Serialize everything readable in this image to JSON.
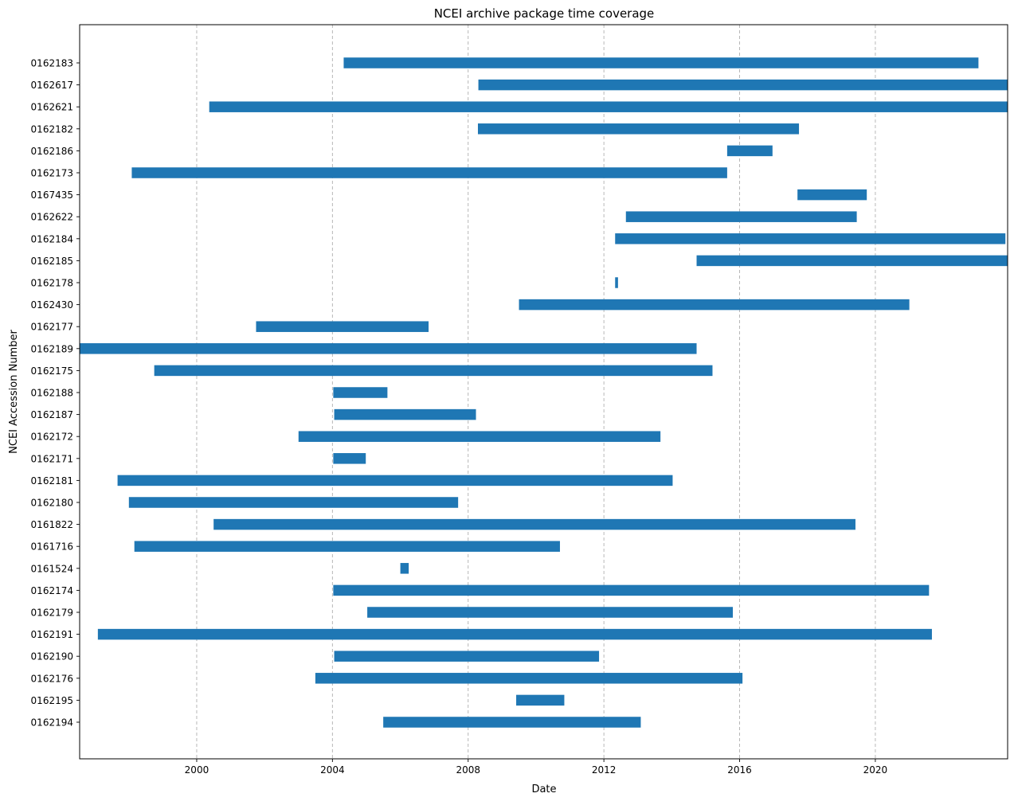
{
  "chart_data": {
    "type": "bar",
    "orientation": "horizontal",
    "title": "NCEI archive package time coverage",
    "xlabel": "Date",
    "ylabel": "NCEI Accession Number",
    "x_scale": "date",
    "xlim": [
      "1996-07-20",
      "2023-11-25"
    ],
    "x_ticks": [
      "2000",
      "2004",
      "2008",
      "2012",
      "2016",
      "2020"
    ],
    "grid": {
      "x": true,
      "y": false,
      "style": "dashed"
    },
    "bar_color": "#1f77b4",
    "categories": [
      "0162183",
      "0162617",
      "0162621",
      "0162182",
      "0162186",
      "0162173",
      "0167435",
      "0162622",
      "0162184",
      "0162185",
      "0162178",
      "0162430",
      "0162177",
      "0162189",
      "0162175",
      "0162188",
      "0162187",
      "0162172",
      "0162171",
      "0162181",
      "0162180",
      "0161822",
      "0161716",
      "0161524",
      "0162174",
      "0162179",
      "0162191",
      "0162190",
      "0162176",
      "0162195",
      "0162194"
    ],
    "start": [
      "2004-05-01",
      "2008-04-20",
      "2000-05-15",
      "2008-04-15",
      "2015-08-20",
      "1998-02-01",
      "2017-09-15",
      "2012-08-25",
      "2012-05-01",
      "2014-09-25",
      "2012-05-01",
      "2009-07-01",
      "2001-10-01",
      "1996-07-20",
      "1998-10-01",
      "2004-01-10",
      "2004-01-20",
      "2003-01-01",
      "2004-01-10",
      "1997-09-01",
      "1998-01-01",
      "2000-07-01",
      "1998-03-01",
      "2006-01-01",
      "2004-01-10",
      "2005-01-10",
      "1997-02-01",
      "2004-01-20",
      "2003-07-01",
      "2009-06-01",
      "2005-07-01"
    ],
    "end": [
      "2023-01-15",
      "2023-11-25",
      "2023-11-25",
      "2017-10-01",
      "2016-12-20",
      "2015-08-20",
      "2019-10-01",
      "2019-06-15",
      "2023-11-01",
      "2023-11-25",
      "2012-06-01",
      "2021-01-01",
      "2006-11-01",
      "2014-09-25",
      "2015-03-15",
      "2005-08-15",
      "2008-03-25",
      "2013-09-01",
      "2004-12-25",
      "2014-01-10",
      "2007-09-15",
      "2019-06-01",
      "2010-09-15",
      "2006-04-01",
      "2021-08-01",
      "2015-10-20",
      "2021-09-01",
      "2011-11-10",
      "2016-02-01",
      "2010-11-01",
      "2013-02-01"
    ]
  }
}
